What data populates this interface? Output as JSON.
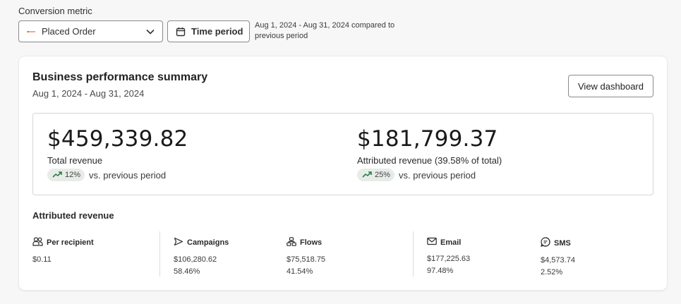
{
  "filters": {
    "conversion_label": "Conversion metric",
    "conversion_value": "Placed Order",
    "time_period_label": "Time period",
    "period_text": "Aug 1, 2024 - Aug 31, 2024 compared to previous period"
  },
  "summary": {
    "title": "Business performance summary",
    "date_range": "Aug 1, 2024 - Aug 31, 2024",
    "view_dashboard_label": "View dashboard",
    "total": {
      "value": "$459,339.82",
      "label": "Total revenue",
      "change": "12%",
      "change_suffix": "vs. previous period"
    },
    "attributed": {
      "value": "$181,799.37",
      "label": "Attributed revenue (39.58% of total)",
      "change": "25%",
      "change_suffix": "vs. previous period"
    }
  },
  "attributed_revenue": {
    "title": "Attributed revenue",
    "per_recipient": {
      "label": "Per recipient",
      "value": "$0.11"
    },
    "campaigns": {
      "label": "Campaigns",
      "value": "$106,280.62",
      "percent": "58.46%"
    },
    "flows": {
      "label": "Flows",
      "value": "$75,518.75",
      "percent": "41.54%"
    },
    "email": {
      "label": "Email",
      "value": "$177,225.63",
      "percent": "97.48%"
    },
    "sms": {
      "label": "SMS",
      "value": "$4,573.74",
      "percent": "2.52%"
    }
  },
  "colors": {
    "trend_up": "#2e7d4f",
    "metric_accent": "#e0734a",
    "border": "#8a8a8a"
  },
  "icons": [
    "dash-icon",
    "chevron-down-icon",
    "calendar-icon",
    "trend-up-icon",
    "users-icon",
    "send-icon",
    "flow-icon",
    "mail-icon",
    "sms-icon"
  ]
}
